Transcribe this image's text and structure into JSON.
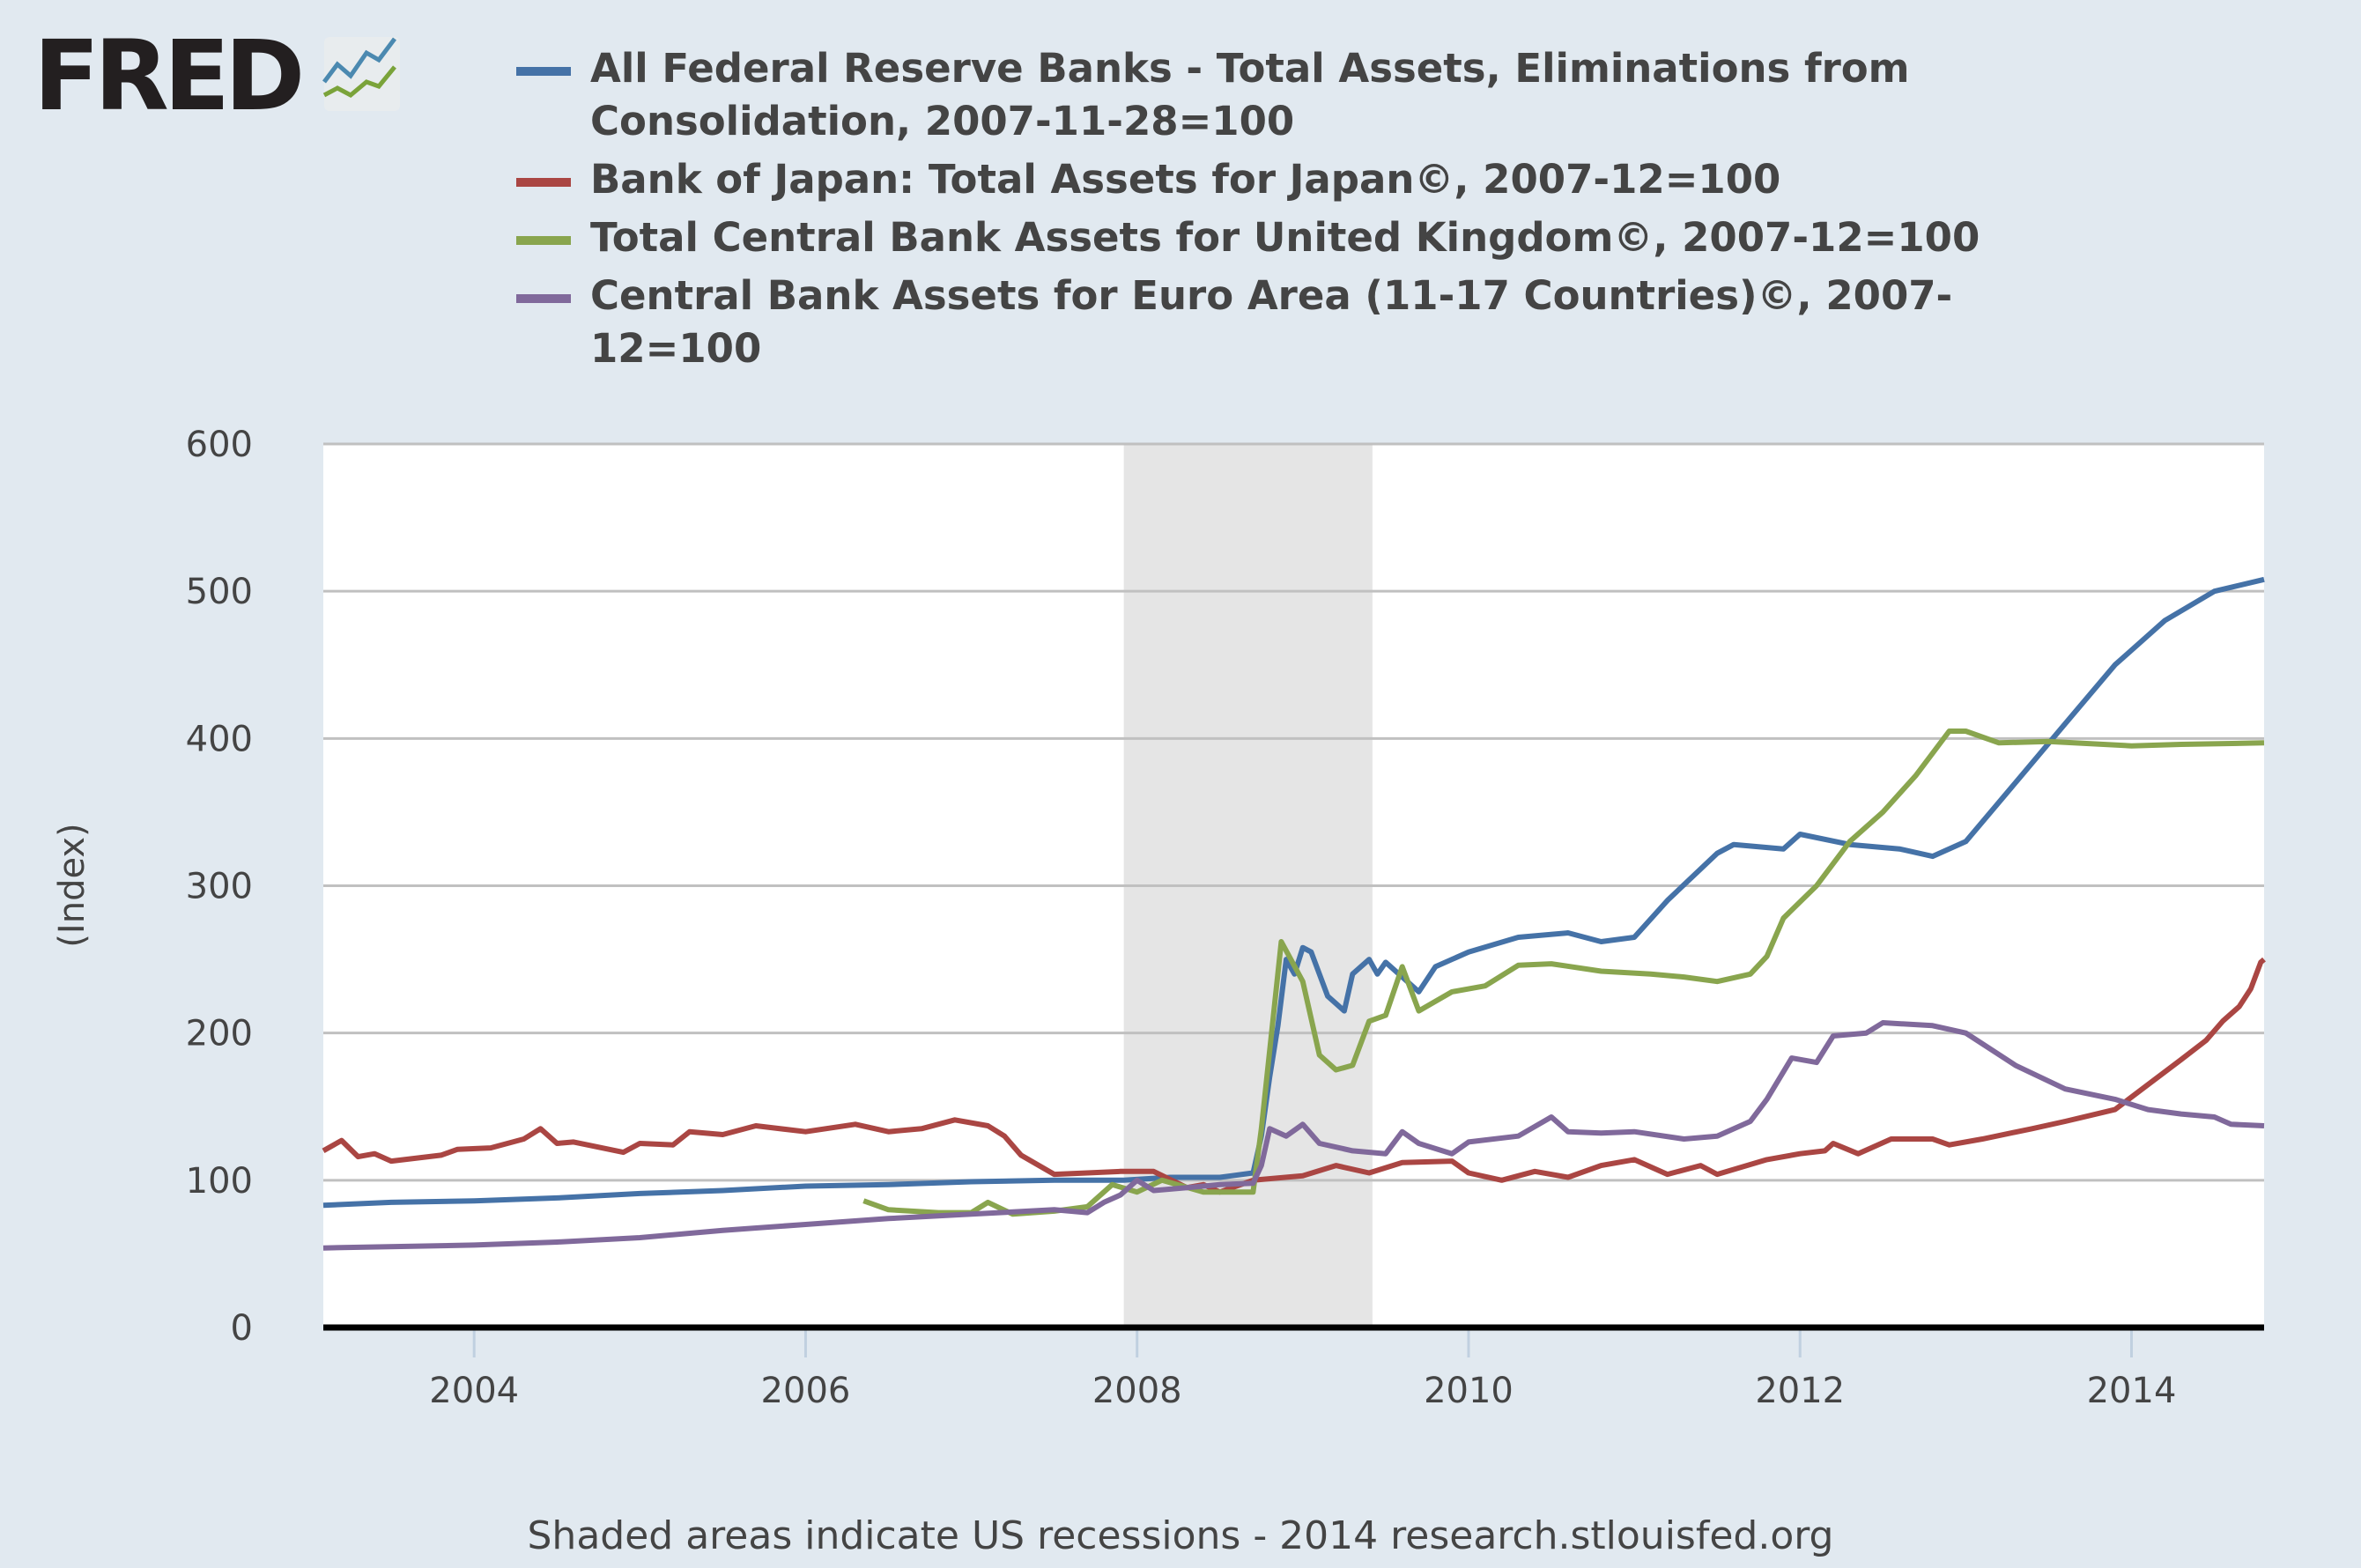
{
  "logo": {
    "text": "FRED"
  },
  "chart_data": {
    "type": "line",
    "title": "",
    "ylabel": "(Index)",
    "xlabel": "",
    "xlim": [
      2003.09,
      2014.8
    ],
    "ylim": [
      0,
      600
    ],
    "yticks": [
      0,
      100,
      200,
      300,
      400,
      500,
      600
    ],
    "xticks": [
      2004,
      2006,
      2008,
      2010,
      2012,
      2014
    ],
    "grid": true,
    "legend": "top",
    "recessions": [
      [
        2007.92,
        2009.42
      ]
    ],
    "recession_color": "#e5e5e5",
    "series": [
      {
        "name": "All Federal Reserve Banks - Total Assets, Eliminations from Consolidation, 2007-11-28=100",
        "color": "#4572a7",
        "points": [
          [
            2003.09,
            83
          ],
          [
            2003.5,
            85
          ],
          [
            2004,
            86
          ],
          [
            2004.5,
            88
          ],
          [
            2005,
            91
          ],
          [
            2005.5,
            93
          ],
          [
            2006,
            96
          ],
          [
            2006.5,
            97
          ],
          [
            2007,
            99
          ],
          [
            2007.5,
            100
          ],
          [
            2007.92,
            100
          ],
          [
            2008.2,
            102
          ],
          [
            2008.5,
            102
          ],
          [
            2008.7,
            105
          ],
          [
            2008.75,
            130
          ],
          [
            2008.8,
            170
          ],
          [
            2008.85,
            205
          ],
          [
            2008.9,
            250
          ],
          [
            2008.95,
            240
          ],
          [
            2009.0,
            258
          ],
          [
            2009.05,
            255
          ],
          [
            2009.15,
            225
          ],
          [
            2009.25,
            215
          ],
          [
            2009.3,
            240
          ],
          [
            2009.4,
            250
          ],
          [
            2009.45,
            240
          ],
          [
            2009.5,
            248
          ],
          [
            2009.6,
            238
          ],
          [
            2009.7,
            228
          ],
          [
            2009.8,
            245
          ],
          [
            2010.0,
            255
          ],
          [
            2010.3,
            265
          ],
          [
            2010.6,
            268
          ],
          [
            2010.8,
            262
          ],
          [
            2011.0,
            265
          ],
          [
            2011.2,
            290
          ],
          [
            2011.5,
            322
          ],
          [
            2011.6,
            328
          ],
          [
            2011.9,
            325
          ],
          [
            2012.0,
            335
          ],
          [
            2012.3,
            328
          ],
          [
            2012.6,
            325
          ],
          [
            2012.8,
            320
          ],
          [
            2013.0,
            330
          ],
          [
            2013.3,
            370
          ],
          [
            2013.6,
            410
          ],
          [
            2013.9,
            450
          ],
          [
            2014.2,
            480
          ],
          [
            2014.5,
            500
          ],
          [
            2014.8,
            508
          ]
        ]
      },
      {
        "name": "Bank of Japan: Total Assets for Japan©, 2007-12=100",
        "color": "#aa4643",
        "points": [
          [
            2003.09,
            120
          ],
          [
            2003.2,
            127
          ],
          [
            2003.3,
            116
          ],
          [
            2003.4,
            118
          ],
          [
            2003.5,
            113
          ],
          [
            2003.8,
            117
          ],
          [
            2003.9,
            121
          ],
          [
            2004.1,
            122
          ],
          [
            2004.3,
            128
          ],
          [
            2004.4,
            135
          ],
          [
            2004.5,
            125
          ],
          [
            2004.6,
            126
          ],
          [
            2004.9,
            119
          ],
          [
            2005.0,
            125
          ],
          [
            2005.2,
            124
          ],
          [
            2005.3,
            133
          ],
          [
            2005.5,
            131
          ],
          [
            2005.7,
            137
          ],
          [
            2006.0,
            133
          ],
          [
            2006.3,
            138
          ],
          [
            2006.5,
            133
          ],
          [
            2006.7,
            135
          ],
          [
            2006.9,
            141
          ],
          [
            2007.1,
            137
          ],
          [
            2007.2,
            130
          ],
          [
            2007.3,
            117
          ],
          [
            2007.5,
            104
          ],
          [
            2007.7,
            105
          ],
          [
            2007.9,
            106
          ],
          [
            2008.1,
            106
          ],
          [
            2008.3,
            95
          ],
          [
            2008.4,
            97
          ],
          [
            2008.5,
            92
          ],
          [
            2008.7,
            100
          ],
          [
            2009.0,
            103
          ],
          [
            2009.2,
            110
          ],
          [
            2009.4,
            105
          ],
          [
            2009.6,
            112
          ],
          [
            2009.9,
            113
          ],
          [
            2010.0,
            105
          ],
          [
            2010.2,
            100
          ],
          [
            2010.4,
            106
          ],
          [
            2010.6,
            102
          ],
          [
            2010.8,
            110
          ],
          [
            2011.0,
            114
          ],
          [
            2011.2,
            104
          ],
          [
            2011.4,
            110
          ],
          [
            2011.5,
            104
          ],
          [
            2011.8,
            114
          ],
          [
            2012.0,
            118
          ],
          [
            2012.15,
            120
          ],
          [
            2012.2,
            125
          ],
          [
            2012.35,
            118
          ],
          [
            2012.55,
            128
          ],
          [
            2012.8,
            128
          ],
          [
            2012.9,
            124
          ],
          [
            2013.1,
            128
          ],
          [
            2013.4,
            135
          ],
          [
            2013.6,
            140
          ],
          [
            2013.9,
            148
          ],
          [
            2014.1,
            165
          ],
          [
            2014.3,
            182
          ],
          [
            2014.45,
            195
          ],
          [
            2014.55,
            208
          ],
          [
            2014.65,
            218
          ],
          [
            2014.72,
            230
          ],
          [
            2014.78,
            248
          ],
          [
            2014.8,
            250
          ]
        ]
      },
      {
        "name": "Total Central Bank Assets for United Kingdom©, 2007-12=100",
        "color": "#89a54e",
        "points": [
          [
            2006.35,
            86
          ],
          [
            2006.5,
            80
          ],
          [
            2006.8,
            78
          ],
          [
            2007.0,
            78
          ],
          [
            2007.1,
            85
          ],
          [
            2007.25,
            77
          ],
          [
            2007.5,
            79
          ],
          [
            2007.7,
            82
          ],
          [
            2007.85,
            97
          ],
          [
            2008.0,
            92
          ],
          [
            2008.15,
            100
          ],
          [
            2008.4,
            92
          ],
          [
            2008.7,
            92
          ],
          [
            2008.75,
            135
          ],
          [
            2008.87,
            262
          ],
          [
            2009.0,
            235
          ],
          [
            2009.1,
            185
          ],
          [
            2009.2,
            175
          ],
          [
            2009.3,
            178
          ],
          [
            2009.4,
            208
          ],
          [
            2009.5,
            212
          ],
          [
            2009.6,
            245
          ],
          [
            2009.7,
            215
          ],
          [
            2009.9,
            228
          ],
          [
            2010.1,
            232
          ],
          [
            2010.3,
            246
          ],
          [
            2010.5,
            247
          ],
          [
            2010.8,
            242
          ],
          [
            2011.1,
            240
          ],
          [
            2011.3,
            238
          ],
          [
            2011.5,
            235
          ],
          [
            2011.7,
            240
          ],
          [
            2011.8,
            252
          ],
          [
            2011.9,
            278
          ],
          [
            2012.1,
            300
          ],
          [
            2012.3,
            330
          ],
          [
            2012.5,
            350
          ],
          [
            2012.7,
            375
          ],
          [
            2012.9,
            405
          ],
          [
            2013.0,
            405
          ],
          [
            2013.2,
            397
          ],
          [
            2013.5,
            398
          ],
          [
            2014.0,
            395
          ],
          [
            2014.3,
            396
          ],
          [
            2014.8,
            397
          ]
        ]
      },
      {
        "name": "Central Bank Assets for Euro Area (11-17 Countries)©, 2007-12=100",
        "color": "#80699b",
        "points": [
          [
            2003.09,
            54
          ],
          [
            2004,
            56
          ],
          [
            2004.5,
            58
          ],
          [
            2005,
            61
          ],
          [
            2005.5,
            66
          ],
          [
            2006,
            70
          ],
          [
            2006.5,
            74
          ],
          [
            2007,
            77
          ],
          [
            2007.5,
            80
          ],
          [
            2007.7,
            78
          ],
          [
            2007.8,
            85
          ],
          [
            2007.9,
            90
          ],
          [
            2008.0,
            100
          ],
          [
            2008.1,
            93
          ],
          [
            2008.3,
            95
          ],
          [
            2008.5,
            97
          ],
          [
            2008.7,
            98
          ],
          [
            2008.75,
            110
          ],
          [
            2008.8,
            135
          ],
          [
            2008.9,
            130
          ],
          [
            2009.0,
            138
          ],
          [
            2009.1,
            125
          ],
          [
            2009.3,
            120
          ],
          [
            2009.5,
            118
          ],
          [
            2009.6,
            133
          ],
          [
            2009.7,
            125
          ],
          [
            2009.9,
            118
          ],
          [
            2010.0,
            126
          ],
          [
            2010.3,
            130
          ],
          [
            2010.5,
            143
          ],
          [
            2010.6,
            133
          ],
          [
            2010.8,
            132
          ],
          [
            2011.0,
            133
          ],
          [
            2011.3,
            128
          ],
          [
            2011.5,
            130
          ],
          [
            2011.7,
            140
          ],
          [
            2011.8,
            155
          ],
          [
            2011.95,
            183
          ],
          [
            2012.1,
            180
          ],
          [
            2012.2,
            198
          ],
          [
            2012.4,
            200
          ],
          [
            2012.5,
            207
          ],
          [
            2012.8,
            205
          ],
          [
            2013.0,
            200
          ],
          [
            2013.3,
            178
          ],
          [
            2013.6,
            162
          ],
          [
            2013.9,
            155
          ],
          [
            2014.1,
            148
          ],
          [
            2014.3,
            145
          ],
          [
            2014.5,
            143
          ],
          [
            2014.6,
            138
          ],
          [
            2014.8,
            137
          ]
        ]
      }
    ]
  },
  "footer": "Shaded areas indicate US recessions - 2014 research.stlouisfed.org"
}
